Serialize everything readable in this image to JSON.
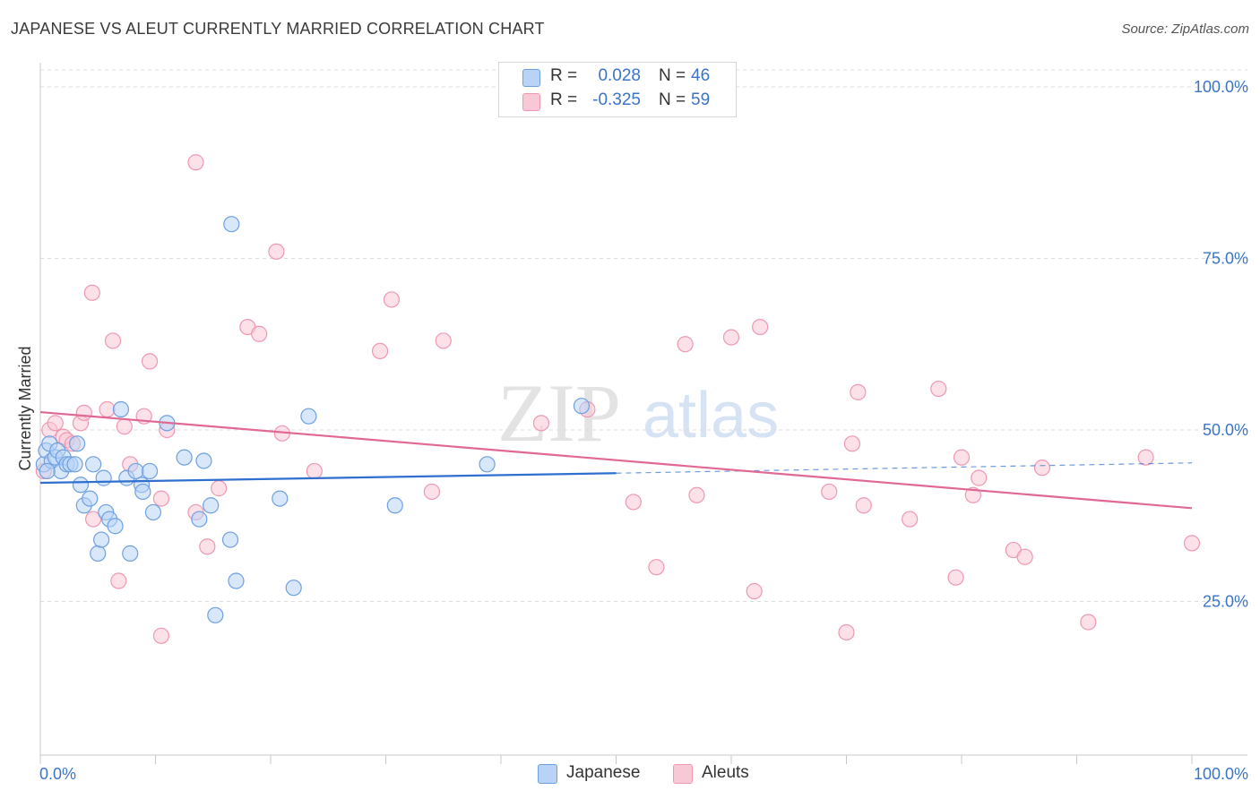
{
  "header": {
    "title": "JAPANESE VS ALEUT CURRENTLY MARRIED CORRELATION CHART",
    "source": "Source: ZipAtlas.com"
  },
  "watermark": {
    "zip": "ZIP",
    "atlas": "atlas"
  },
  "legend": {
    "r_label": "R =",
    "n_label": "N =",
    "series": [
      {
        "name": "Japanese",
        "r": "0.028",
        "n": "46"
      },
      {
        "name": "Aleuts",
        "r": "-0.325",
        "n": "59"
      }
    ]
  },
  "colors": {
    "japanese_fill": "#b8d3f5",
    "japanese_stroke": "#6ea0e0",
    "japanese_line": "#2f6fcf",
    "aleut_fill": "#f9c8d6",
    "aleut_stroke": "#ee98b2",
    "aleut_line": "#e06894",
    "tick_label": "#3a74c9"
  },
  "chart_data": {
    "type": "scatter",
    "title": "JAPANESE VS ALEUT CURRENTLY MARRIED CORRELATION CHART",
    "xlabel": "",
    "ylabel": "Currently Married",
    "xlim": [
      0,
      100
    ],
    "ylim": [
      0,
      105
    ],
    "x_tick_labels": [
      "0.0%",
      "100.0%"
    ],
    "y_ticks": [
      25,
      50,
      75,
      100
    ],
    "y_tick_labels": [
      "25.0%",
      "50.0%",
      "75.0%",
      "100.0%"
    ],
    "grid": true,
    "series": [
      {
        "name": "Japanese",
        "points": [
          [
            0.3,
            45
          ],
          [
            0.5,
            47
          ],
          [
            0.8,
            48
          ],
          [
            1.0,
            45.5
          ],
          [
            1.3,
            46
          ],
          [
            1.5,
            47
          ],
          [
            1.8,
            44
          ],
          [
            2.0,
            46
          ],
          [
            2.3,
            45
          ],
          [
            2.6,
            45
          ],
          [
            3.0,
            45
          ],
          [
            3.2,
            48
          ],
          [
            3.5,
            42
          ],
          [
            3.8,
            39
          ],
          [
            4.3,
            40
          ],
          [
            4.6,
            45
          ],
          [
            5.0,
            32
          ],
          [
            5.3,
            34
          ],
          [
            5.5,
            43
          ],
          [
            5.7,
            38
          ],
          [
            6.0,
            37
          ],
          [
            6.5,
            36
          ],
          [
            7.0,
            53
          ],
          [
            7.5,
            43
          ],
          [
            7.8,
            32
          ],
          [
            8.3,
            44
          ],
          [
            8.8,
            42
          ],
          [
            8.9,
            41
          ],
          [
            9.5,
            44
          ],
          [
            9.8,
            38
          ],
          [
            11.0,
            51
          ],
          [
            12.5,
            46
          ],
          [
            13.8,
            37
          ],
          [
            14.2,
            45.5
          ],
          [
            14.8,
            39
          ],
          [
            15.2,
            23
          ],
          [
            16.5,
            34
          ],
          [
            16.6,
            80
          ],
          [
            17.0,
            28
          ],
          [
            20.8,
            40
          ],
          [
            22.0,
            27
          ],
          [
            23.3,
            52
          ],
          [
            30.8,
            39
          ],
          [
            38.8,
            45
          ],
          [
            47.0,
            53.5
          ],
          [
            0.6,
            44
          ]
        ]
      },
      {
        "name": "Aleuts",
        "points": [
          [
            0.3,
            44
          ],
          [
            0.8,
            50
          ],
          [
            1.3,
            51
          ],
          [
            2.0,
            49
          ],
          [
            2.3,
            48.5
          ],
          [
            2.8,
            48
          ],
          [
            3.5,
            51
          ],
          [
            3.8,
            52.5
          ],
          [
            4.5,
            70
          ],
          [
            4.6,
            37
          ],
          [
            5.8,
            53
          ],
          [
            6.3,
            63
          ],
          [
            6.8,
            28
          ],
          [
            7.3,
            50.5
          ],
          [
            7.8,
            45
          ],
          [
            9.0,
            52
          ],
          [
            9.5,
            60
          ],
          [
            10.5,
            20
          ],
          [
            10.5,
            40
          ],
          [
            11.0,
            50
          ],
          [
            13.5,
            89
          ],
          [
            13.5,
            38
          ],
          [
            14.5,
            33
          ],
          [
            15.5,
            41.5
          ],
          [
            18.0,
            65
          ],
          [
            19.0,
            64
          ],
          [
            20.5,
            76
          ],
          [
            21.0,
            49.5
          ],
          [
            23.8,
            44
          ],
          [
            29.5,
            61.5
          ],
          [
            30.5,
            69
          ],
          [
            34.0,
            41
          ],
          [
            35.0,
            63
          ],
          [
            43.5,
            51
          ],
          [
            47.5,
            53
          ],
          [
            51.5,
            39.5
          ],
          [
            53.5,
            30
          ],
          [
            56.0,
            62.5
          ],
          [
            57.0,
            40.5
          ],
          [
            60.0,
            63.5
          ],
          [
            62.0,
            26.5
          ],
          [
            62.5,
            65
          ],
          [
            68.5,
            41
          ],
          [
            70.0,
            20.5
          ],
          [
            70.5,
            48
          ],
          [
            71.0,
            55.5
          ],
          [
            71.5,
            39
          ],
          [
            75.5,
            37
          ],
          [
            78.0,
            56
          ],
          [
            79.5,
            28.5
          ],
          [
            80.0,
            46
          ],
          [
            81.0,
            40.5
          ],
          [
            81.5,
            43
          ],
          [
            84.5,
            32.5
          ],
          [
            85.5,
            31.5
          ],
          [
            87.0,
            44.5
          ],
          [
            91.0,
            22
          ],
          [
            96.0,
            46
          ],
          [
            100.0,
            33.5
          ]
        ]
      }
    ],
    "trend_lines": [
      {
        "series": "Japanese",
        "x": [
          0,
          50
        ],
        "y": [
          42.3,
          43.7
        ],
        "dashed_extension": {
          "x": [
            50,
            100
          ],
          "y": [
            43.7,
            45.2
          ]
        }
      },
      {
        "series": "Aleuts",
        "x": [
          0,
          100
        ],
        "y": [
          52.6,
          38.6
        ]
      }
    ]
  }
}
